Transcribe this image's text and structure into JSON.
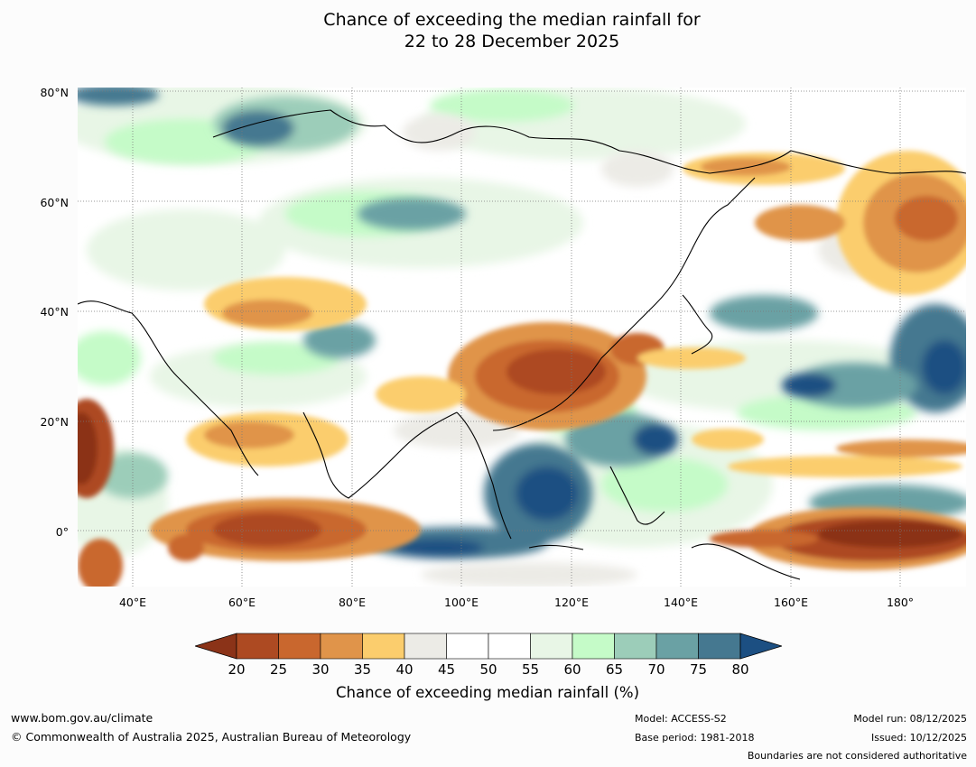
{
  "title": {
    "line1": "Chance of exceeding the median rainfall for",
    "line2": "22 to 28 December 2025"
  },
  "axes": {
    "lat_labels": [
      "80°N",
      "60°N",
      "40°N",
      "20°N",
      "0°"
    ],
    "lon_labels": [
      "40°E",
      "60°E",
      "80°E",
      "100°E",
      "120°E",
      "140°E",
      "160°E",
      "180°"
    ],
    "lat_range": [
      -10,
      80
    ],
    "lon_range": [
      30,
      192
    ],
    "grid": true
  },
  "colorbar": {
    "ticks": [
      "20",
      "25",
      "30",
      "35",
      "40",
      "45",
      "50",
      "55",
      "60",
      "65",
      "70",
      "75",
      "80"
    ],
    "colors": [
      "#8b3318",
      "#ad4a22",
      "#c9672e",
      "#e0944a",
      "#fbcd6d",
      "#ecebe6",
      "#ffffff",
      "#ffffff",
      "#e8f6e6",
      "#c5fbc8",
      "#9ccdb9",
      "#6aa1a4",
      "#457890",
      "#1c4f82"
    ],
    "label": "Chance of exceeding median rainfall (%)"
  },
  "footer": {
    "website": "www.bom.gov.au/climate",
    "copyright": "© Commonwealth of Australia 2025, Australian Bureau of Meteorology",
    "model": "Model: ACCESS-S2",
    "base_period": "Base period: 1981-2018",
    "model_run": "Model run: 08/12/2025",
    "issued": "Issued: 10/12/2025",
    "disclaimer": "Boundaries are not considered authoritative"
  }
}
